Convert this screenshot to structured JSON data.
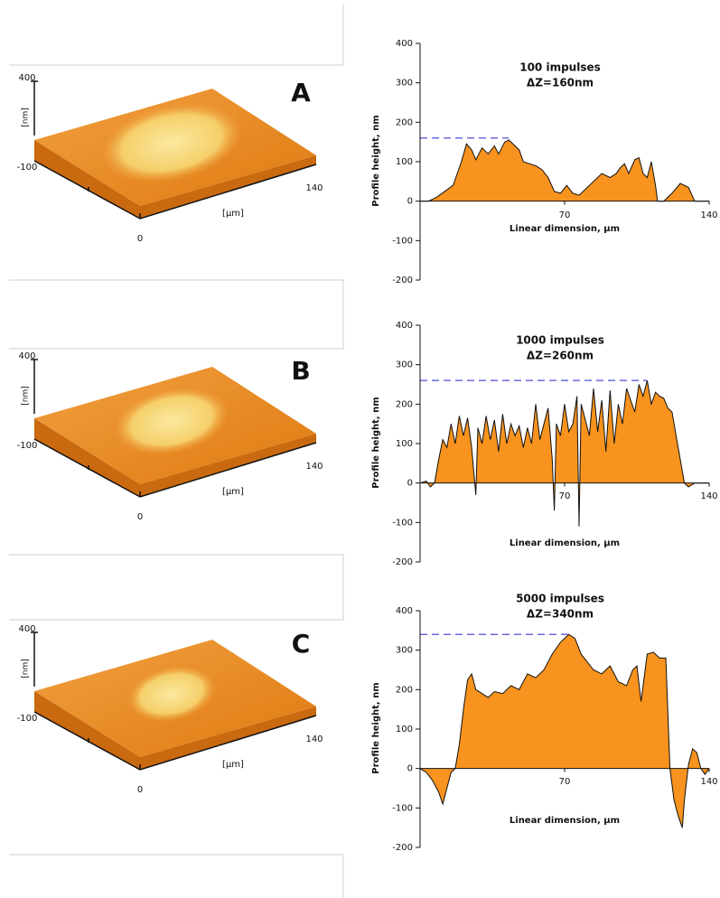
{
  "panels": [
    {
      "label": "A",
      "z_top": "400",
      "z_unit": "[nm]",
      "z_bottom": "-100",
      "x_end": "140",
      "x_unit": "[µm]",
      "origin": "0"
    },
    {
      "label": "B",
      "z_top": "400",
      "z_unit": "[nm]",
      "z_bottom": "-100",
      "x_end": "140",
      "x_unit": "[µm]",
      "origin": "0"
    },
    {
      "label": "C",
      "z_top": "400",
      "z_unit": "[nm]",
      "z_bottom": "-100",
      "x_end": "140",
      "x_unit": "[µm]",
      "origin": "0"
    }
  ],
  "chart_data": [
    {
      "type": "area",
      "title": "100 impulses",
      "subtitle": "ΔZ=160nm",
      "x_label": "Linear dimension, µm",
      "y_label": "Profile height, nm",
      "color": "#f7931e",
      "reference_line": {
        "value": 160,
        "color": "#6b6bdf"
      },
      "xlim": [
        0,
        140
      ],
      "xticks": [
        70,
        140
      ],
      "ylim": [
        -200,
        400
      ],
      "yticks": [
        -200,
        -100,
        0,
        100,
        200,
        300,
        400
      ],
      "x": [
        0,
        4,
        8,
        12,
        16,
        20,
        22.5,
        25,
        27,
        30,
        33,
        36,
        38,
        41,
        43,
        46,
        48,
        50,
        53,
        56,
        59,
        62,
        65,
        68,
        71,
        74,
        77,
        80,
        84,
        88,
        92,
        95,
        97,
        99,
        101,
        104,
        106,
        108,
        110,
        112,
        114,
        115,
        118,
        122,
        126,
        130,
        133,
        136,
        140
      ],
      "values": [
        0,
        0,
        10,
        25,
        40,
        100,
        145,
        130,
        105,
        135,
        120,
        140,
        120,
        150,
        155,
        140,
        130,
        100,
        95,
        90,
        80,
        60,
        25,
        20,
        40,
        20,
        15,
        30,
        50,
        70,
        60,
        70,
        85,
        95,
        70,
        105,
        110,
        70,
        60,
        100,
        40,
        0,
        0,
        20,
        45,
        35,
        0,
        0,
        0
      ]
    },
    {
      "type": "area",
      "title": "1000 impulses",
      "subtitle": "ΔZ=260nm",
      "x_label": "Linear dimension, µm",
      "y_label": "Profile height, nm",
      "color": "#f7931e",
      "reference_line": {
        "value": 260,
        "color": "#6b6bdf"
      },
      "xlim": [
        0,
        140
      ],
      "xticks": [
        70,
        140
      ],
      "ylim": [
        -200,
        400
      ],
      "yticks": [
        -200,
        -100,
        0,
        100,
        200,
        300,
        400
      ],
      "x": [
        0,
        3,
        5,
        7,
        9,
        11,
        13,
        15,
        17,
        19,
        21,
        23,
        25,
        27,
        28,
        30,
        32,
        34,
        36,
        38,
        40,
        42,
        44,
        46,
        48,
        50,
        52,
        54,
        56,
        58,
        60,
        62,
        64,
        65,
        66,
        68,
        70,
        72,
        74,
        76,
        77,
        78,
        80,
        82,
        84,
        86,
        88,
        90,
        92,
        94,
        96,
        98,
        100,
        102,
        104,
        106,
        108,
        110,
        112,
        114,
        116,
        118,
        120,
        122,
        124,
        126,
        128,
        130,
        133,
        136,
        140
      ],
      "values": [
        0,
        5,
        -10,
        0,
        60,
        110,
        90,
        150,
        100,
        170,
        120,
        165,
        90,
        -30,
        140,
        100,
        170,
        110,
        160,
        80,
        175,
        100,
        150,
        120,
        145,
        90,
        140,
        100,
        200,
        110,
        150,
        190,
        60,
        -70,
        150,
        120,
        200,
        130,
        150,
        220,
        -110,
        200,
        160,
        120,
        240,
        130,
        210,
        80,
        235,
        100,
        200,
        150,
        240,
        210,
        180,
        250,
        220,
        260,
        200,
        230,
        220,
        215,
        190,
        180,
        120,
        60,
        0,
        -10,
        0,
        0,
        0
      ]
    },
    {
      "type": "area",
      "title": "5000 impulses",
      "subtitle": "ΔZ=340nm",
      "x_label": "Linear dimension, µm",
      "y_label": "Profile height, nm",
      "color": "#f7931e",
      "reference_line": {
        "value": 340,
        "color": "#6b6bdf"
      },
      "xlim": [
        0,
        140
      ],
      "xticks": [
        70,
        140
      ],
      "ylim": [
        -200,
        400
      ],
      "yticks": [
        -200,
        -100,
        0,
        100,
        200,
        300,
        400
      ],
      "x": [
        0,
        3,
        6,
        9,
        11,
        13,
        15,
        17,
        19,
        21,
        23,
        25,
        27,
        30,
        33,
        36,
        40,
        44,
        48,
        52,
        56,
        60,
        64,
        68,
        72,
        75,
        78,
        81,
        84,
        88,
        92,
        96,
        100,
        103,
        105,
        107,
        108,
        110,
        113,
        116,
        119,
        121,
        123,
        125,
        127,
        128,
        130,
        132,
        134,
        136,
        138,
        140
      ],
      "values": [
        0,
        -10,
        -30,
        -60,
        -90,
        -50,
        -10,
        0,
        60,
        150,
        225,
        240,
        200,
        190,
        180,
        195,
        190,
        210,
        200,
        240,
        230,
        250,
        290,
        320,
        340,
        330,
        290,
        270,
        250,
        240,
        260,
        220,
        210,
        250,
        260,
        170,
        210,
        290,
        295,
        280,
        280,
        0,
        -80,
        -120,
        -150,
        -80,
        10,
        50,
        40,
        0,
        -15,
        0
      ]
    }
  ]
}
